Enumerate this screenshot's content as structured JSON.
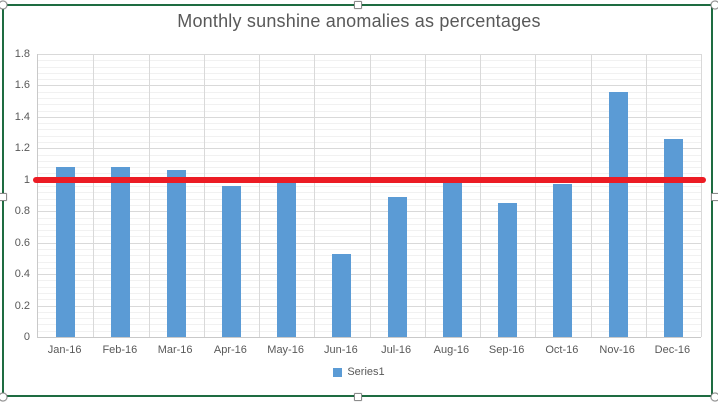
{
  "chart_data": {
    "type": "bar",
    "title": "Monthly sunshine anomalies as percentages",
    "categories": [
      "Jan-16",
      "Feb-16",
      "Mar-16",
      "Apr-16",
      "May-16",
      "Jun-16",
      "Jul-16",
      "Aug-16",
      "Sep-16",
      "Oct-16",
      "Nov-16",
      "Dec-16"
    ],
    "series": [
      {
        "name": "Series1",
        "values": [
          1.08,
          1.08,
          1.06,
          0.96,
          0.98,
          0.53,
          0.89,
          0.98,
          0.85,
          0.97,
          1.56,
          1.26
        ]
      }
    ],
    "target_line": {
      "value": 1.0
    },
    "xlabel": "",
    "ylabel": "",
    "ylim": [
      0,
      1.8
    ],
    "y_major_step": 0.2,
    "y_minor_step": 0.04,
    "y_tick_labels": [
      "0",
      "0.2",
      "0.4",
      "0.6",
      "0.8",
      "1",
      "1.2",
      "1.4",
      "1.6",
      "1.8"
    ],
    "grid": "major-and-minor",
    "legend_position": "bottom"
  },
  "colors": {
    "bar": "#5B9BD5",
    "target_line": "#EC1C24",
    "text": "#595959",
    "gridline_major": "#D9D9D9",
    "gridline_minor": "#F1F1F1",
    "axis_line": "#C9C9C9",
    "selection_border": "#1E6C41"
  },
  "selection": {
    "state": "chart-selected"
  }
}
